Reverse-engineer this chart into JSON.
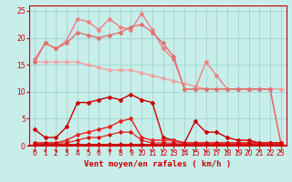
{
  "bg_color": "#c8eeea",
  "grid_color": "#a0d4d0",
  "xlabel": "Vent moyen/en rafales ( km/h )",
  "xlim": [
    -0.5,
    23.5
  ],
  "ylim": [
    0,
    26
  ],
  "yticks": [
    0,
    5,
    10,
    15,
    20,
    25
  ],
  "xticks": [
    0,
    1,
    2,
    3,
    4,
    5,
    6,
    7,
    8,
    9,
    10,
    11,
    12,
    13,
    14,
    15,
    16,
    17,
    18,
    19,
    20,
    21,
    22,
    23
  ],
  "series": [
    {
      "x": [
        0,
        1,
        2,
        3,
        4,
        5,
        6,
        7,
        8,
        9,
        10,
        11,
        12,
        13,
        14,
        15,
        16,
        17,
        18,
        19,
        20,
        21,
        22,
        23
      ],
      "y": [
        15.5,
        15.5,
        15.5,
        15.5,
        15.5,
        15.0,
        14.5,
        14.0,
        14.0,
        14.0,
        13.5,
        13.0,
        12.5,
        12.0,
        11.5,
        11.0,
        10.5,
        10.5,
        10.5,
        10.5,
        10.5,
        10.5,
        10.5,
        10.5
      ],
      "color": "#f0a0a0",
      "lw": 1.0,
      "marker": "D",
      "ms": 2.0,
      "ls": "-"
    },
    {
      "x": [
        0,
        1,
        2,
        3,
        4,
        5,
        6,
        7,
        8,
        9,
        10,
        11,
        12,
        13,
        14,
        15,
        16,
        17,
        18,
        19,
        20,
        21,
        22,
        23
      ],
      "y": [
        16.0,
        19.0,
        18.0,
        19.5,
        23.5,
        23.0,
        21.5,
        23.5,
        22.0,
        21.5,
        24.5,
        21.5,
        18.0,
        16.0,
        10.5,
        10.5,
        15.5,
        13.0,
        10.5,
        10.5,
        10.5,
        10.5,
        10.5,
        0.5
      ],
      "color": "#f08080",
      "lw": 1.0,
      "marker": "D",
      "ms": 2.0,
      "ls": "-"
    },
    {
      "x": [
        0,
        1,
        2,
        3,
        4,
        5,
        6,
        7,
        8,
        9,
        10,
        11,
        12,
        13,
        14,
        15,
        16,
        17,
        18,
        19,
        20,
        21,
        22,
        23
      ],
      "y": [
        15.5,
        19.0,
        18.0,
        19.0,
        21.0,
        20.5,
        20.0,
        20.5,
        21.0,
        22.0,
        22.5,
        21.0,
        19.0,
        16.5,
        10.5,
        10.5,
        10.5,
        10.5,
        10.5,
        10.5,
        10.5,
        10.5,
        10.5,
        0.5
      ],
      "color": "#e07070",
      "lw": 1.0,
      "marker": "D",
      "ms": 2.0,
      "ls": "-"
    },
    {
      "x": [
        0,
        1,
        2,
        3,
        4,
        5,
        6,
        7,
        8,
        9,
        10,
        11,
        12,
        13,
        14,
        15,
        16,
        17,
        18,
        19,
        20,
        21,
        22,
        23
      ],
      "y": [
        3.0,
        1.5,
        1.5,
        3.5,
        8.0,
        8.0,
        8.5,
        9.0,
        8.5,
        9.5,
        8.5,
        8.0,
        1.5,
        1.0,
        0.5,
        4.5,
        2.5,
        2.5,
        1.5,
        1.0,
        1.0,
        0.5,
        0.5,
        0.5
      ],
      "color": "#cc0000",
      "lw": 1.0,
      "marker": "D",
      "ms": 2.0,
      "ls": "-"
    },
    {
      "x": [
        0,
        1,
        2,
        3,
        4,
        5,
        6,
        7,
        8,
        9,
        10,
        11,
        12,
        13,
        14,
        15,
        16,
        17,
        18,
        19,
        20,
        21,
        22,
        23
      ],
      "y": [
        0.5,
        0.5,
        0.5,
        1.0,
        2.0,
        2.5,
        3.0,
        3.5,
        4.5,
        5.0,
        1.5,
        1.0,
        1.0,
        1.0,
        0.5,
        0.5,
        0.5,
        0.5,
        0.5,
        0.5,
        0.5,
        0.5,
        0.5,
        0.5
      ],
      "color": "#ee2222",
      "lw": 1.0,
      "marker": "D",
      "ms": 2.0,
      "ls": "-"
    },
    {
      "x": [
        0,
        1,
        2,
        3,
        4,
        5,
        6,
        7,
        8,
        9,
        10,
        11,
        12,
        13,
        14,
        15,
        16,
        17,
        18,
        19,
        20,
        21,
        22,
        23
      ],
      "y": [
        0.5,
        0.5,
        0.5,
        0.5,
        1.0,
        1.5,
        1.5,
        2.0,
        2.5,
        2.5,
        1.0,
        0.5,
        0.5,
        0.5,
        0.5,
        0.5,
        0.5,
        0.5,
        0.5,
        0.5,
        0.5,
        0.5,
        0.5,
        0.5
      ],
      "color": "#dd1111",
      "lw": 0.8,
      "marker": "D",
      "ms": 1.8,
      "ls": "-"
    },
    {
      "x": [
        0,
        1,
        2,
        3,
        4,
        5,
        6,
        7,
        8,
        9,
        10,
        11,
        12,
        13,
        14,
        15,
        16,
        17,
        18,
        19,
        20,
        21,
        22,
        23
      ],
      "y": [
        0.3,
        0.3,
        0.3,
        0.3,
        0.3,
        0.3,
        0.3,
        0.3,
        0.3,
        0.3,
        0.3,
        0.3,
        0.3,
        0.3,
        0.3,
        0.3,
        0.3,
        0.3,
        0.3,
        0.3,
        0.3,
        0.3,
        0.3,
        0.3
      ],
      "color": "#cc0000",
      "lw": 0.6,
      "marker": "D",
      "ms": 1.5,
      "ls": "-"
    }
  ],
  "xlabel_color": "#cc0000",
  "xlabel_fontsize": 6.5,
  "tick_fontsize": 5.5,
  "tick_color": "#cc0000",
  "spine_color": "#cc0000"
}
